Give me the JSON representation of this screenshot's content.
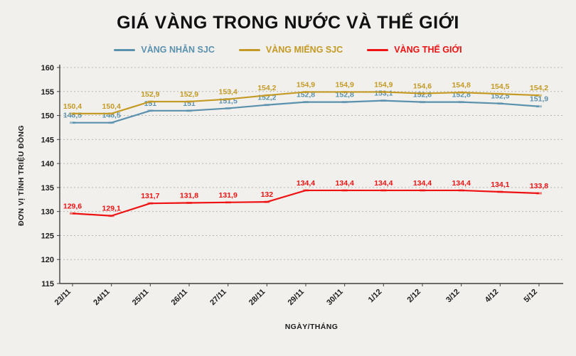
{
  "chart_data": {
    "type": "line",
    "title": "GIÁ VÀNG TRONG NƯỚC VÀ THẾ GIỚI",
    "xlabel": "NGÀY/THÁNG",
    "ylabel": "ĐƠN VỊ TÍNH TRIỆU ĐỒNG",
    "ylim": [
      115,
      160
    ],
    "ytick_step": 5,
    "grid": true,
    "legend_position": "top",
    "background_color": "#f2f0ed",
    "categories": [
      "23/11",
      "24/11",
      "25/11",
      "26/11",
      "27/11",
      "28/11",
      "29/11",
      "30/11",
      "1/12",
      "2/12",
      "3/12",
      "4/12",
      "5/12"
    ],
    "series": [
      {
        "name": "VÀNG NHẪN SJC",
        "color": "#5a91ad",
        "values": [
          148.5,
          148.5,
          151,
          151,
          151.5,
          152.2,
          152.8,
          152.8,
          153.1,
          152.8,
          152.8,
          152.5,
          151.9
        ]
      },
      {
        "name": "VÀNG MIẾNG SJC",
        "color": "#c49a24",
        "values": [
          150.4,
          150.4,
          152.9,
          152.9,
          153.4,
          154.2,
          154.9,
          154.9,
          154.9,
          154.6,
          154.8,
          154.5,
          154.2
        ]
      },
      {
        "name": "VÀNG THẾ GIỚI",
        "color": "#ee1212",
        "values": [
          129.6,
          129.1,
          131.7,
          131.8,
          131.9,
          132,
          134.4,
          134.4,
          134.4,
          134.4,
          134.4,
          134.1,
          133.8
        ]
      }
    ]
  }
}
